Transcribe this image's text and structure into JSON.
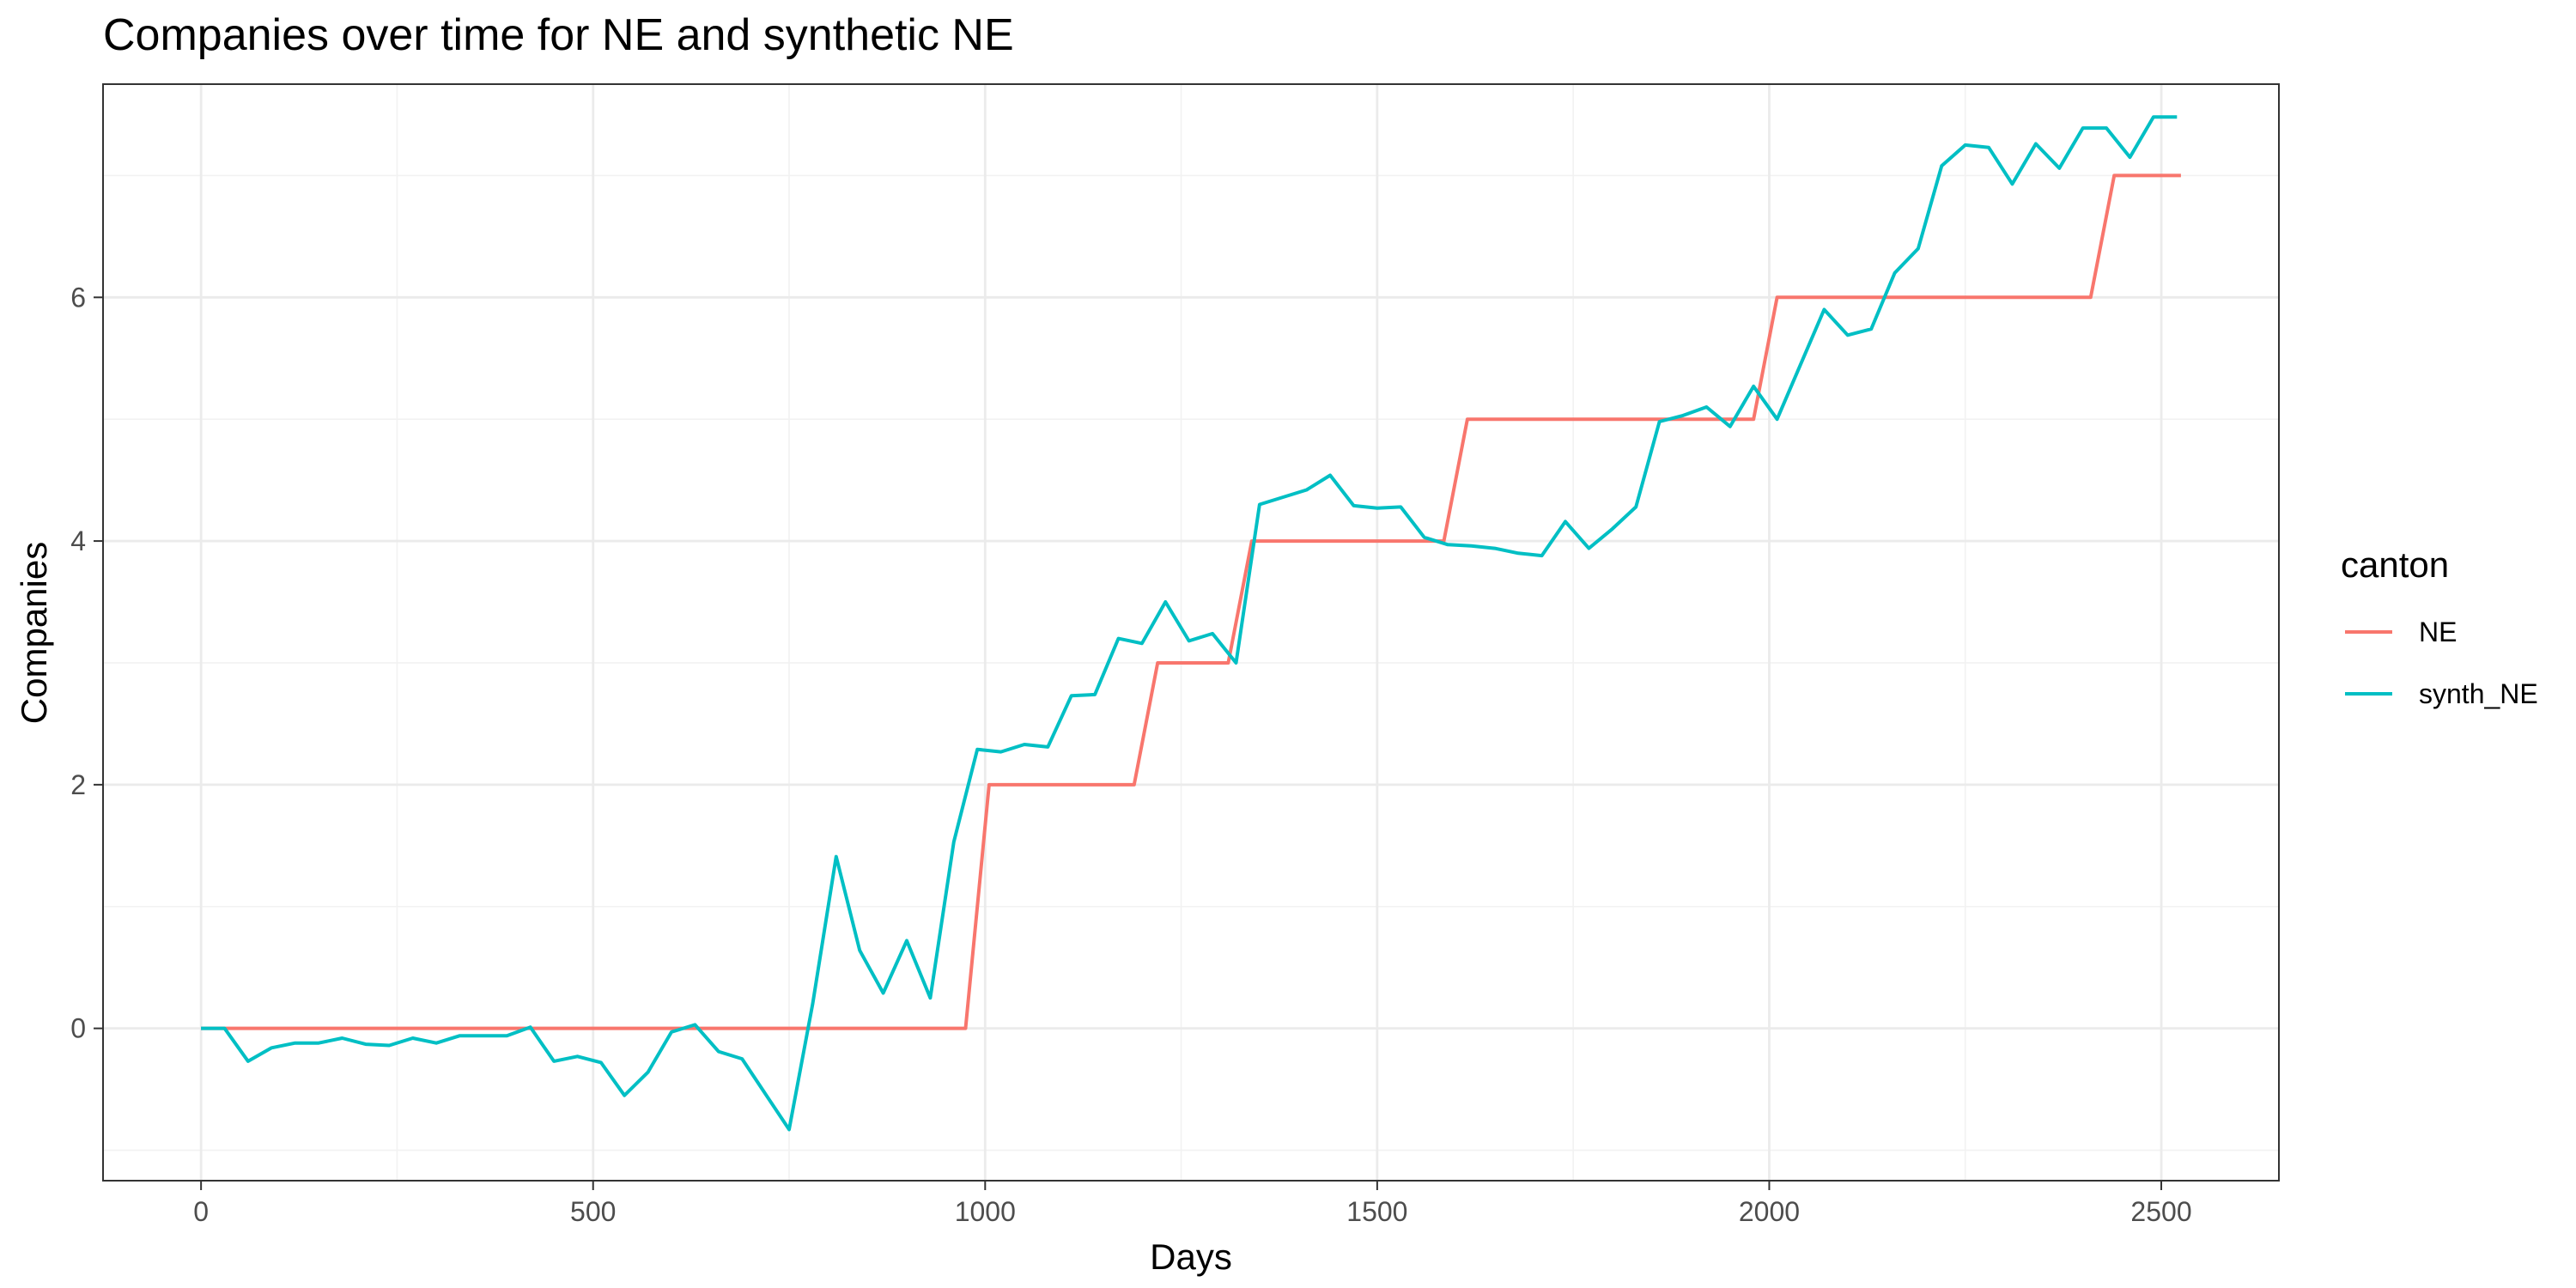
{
  "chart_data": {
    "type": "line",
    "title": "Companies over time for NE and synthetic NE",
    "xlabel": "Days",
    "ylabel": "Companies",
    "xlim": [
      -125,
      2650
    ],
    "ylim": [
      -1.25,
      7.75
    ],
    "x_major_ticks": [
      0,
      500,
      1000,
      1500,
      2000,
      2500
    ],
    "x_minor_ticks": [
      250,
      750,
      1250,
      1750,
      2250
    ],
    "y_major_ticks": [
      0,
      2,
      4,
      6
    ],
    "y_minor_ticks": [
      -1,
      1,
      3,
      5,
      7
    ],
    "x_tick_labels": [
      "0",
      "500",
      "1000",
      "1500",
      "2000",
      "2500"
    ],
    "y_tick_labels": [
      "0",
      "2",
      "4",
      "6"
    ],
    "grid": true,
    "legend": {
      "title": "canton",
      "position": "right"
    },
    "series": [
      {
        "name": "NE",
        "color": "#F8766D",
        "x": [
          0,
          30,
          975,
          1005,
          1190,
          1220,
          1310,
          1340,
          1585,
          1615,
          1980,
          2010,
          2410,
          2440,
          2525
        ],
        "y": [
          0,
          0,
          0,
          2,
          2,
          3,
          3,
          4,
          4,
          5,
          5,
          6,
          6,
          7,
          7
        ]
      },
      {
        "name": "synth_NE",
        "color": "#00BFC4",
        "x": [
          0,
          30,
          60,
          90,
          120,
          150,
          180,
          210,
          240,
          270,
          300,
          330,
          360,
          390,
          420,
          450,
          480,
          510,
          540,
          570,
          600,
          630,
          660,
          690,
          720,
          750,
          780,
          810,
          840,
          870,
          900,
          930,
          960,
          990,
          1020,
          1050,
          1080,
          1110,
          1140,
          1170,
          1200,
          1230,
          1260,
          1290,
          1320,
          1350,
          1380,
          1410,
          1440,
          1470,
          1500,
          1530,
          1560,
          1590,
          1620,
          1650,
          1680,
          1710,
          1740,
          1770,
          1800,
          1830,
          1860,
          1890,
          1920,
          1950,
          1980,
          2010,
          2040,
          2070,
          2100,
          2130,
          2160,
          2190,
          2220,
          2250,
          2280,
          2310,
          2340,
          2370,
          2400,
          2430,
          2460,
          2490,
          2520
        ],
        "y": [
          0,
          0,
          -0.27,
          -0.16,
          -0.12,
          -0.12,
          -0.08,
          -0.13,
          -0.14,
          -0.08,
          -0.12,
          -0.06,
          -0.06,
          -0.06,
          0.01,
          -0.27,
          -0.23,
          -0.28,
          -0.55,
          -0.36,
          -0.03,
          0.03,
          -0.19,
          -0.25,
          -0.54,
          -0.83,
          0.2,
          1.41,
          0.64,
          0.29,
          0.72,
          0.25,
          1.53,
          2.29,
          2.27,
          2.33,
          2.31,
          2.73,
          2.74,
          3.2,
          3.16,
          3.5,
          3.18,
          3.24,
          3.0,
          4.3,
          4.36,
          4.42,
          4.54,
          4.29,
          4.27,
          4.28,
          4.03,
          3.97,
          3.96,
          3.94,
          3.9,
          3.88,
          4.16,
          3.94,
          4.1,
          4.28,
          4.98,
          5.03,
          5.1,
          4.94,
          5.27,
          5.0,
          5.45,
          5.9,
          5.69,
          5.74,
          6.2,
          6.4,
          7.08,
          7.25,
          7.23,
          6.93,
          7.26,
          7.06,
          7.39,
          7.39,
          7.15,
          7.48,
          7.48
        ]
      }
    ]
  }
}
